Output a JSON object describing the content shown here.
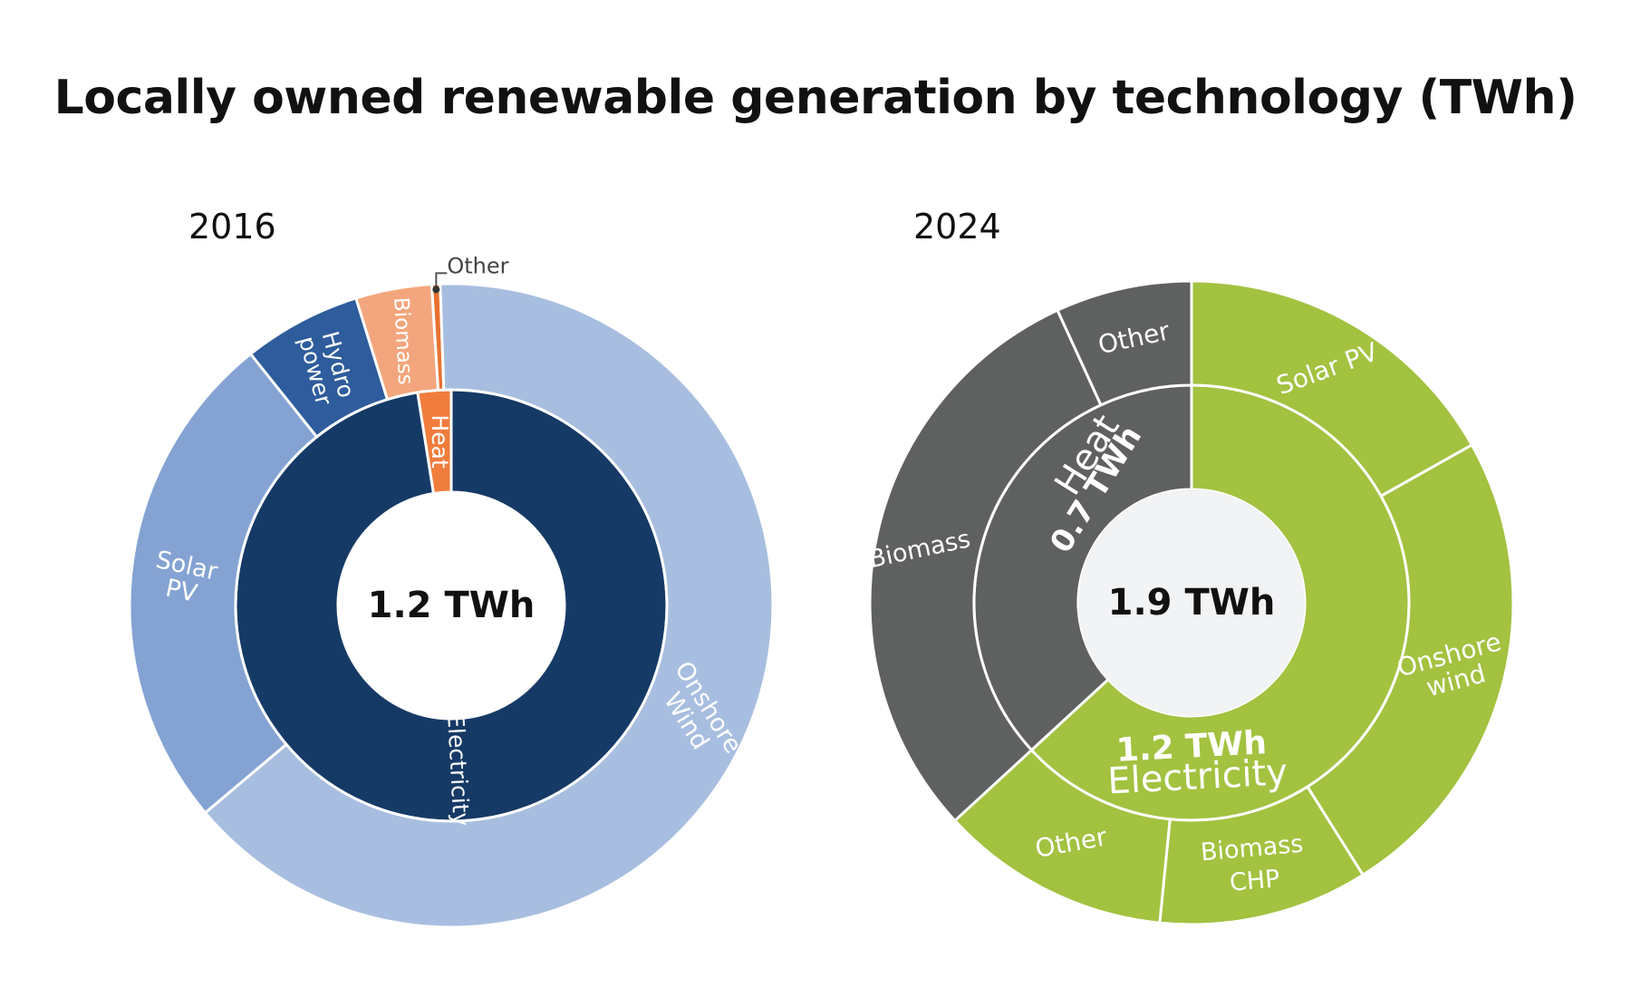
{
  "title": "Locally owned renewable generation by technology (TWh)",
  "colors": {
    "electricity_2016": "#163a66",
    "heat_2016": "#f07d3c",
    "solar_pv_2016": "#84a3d3",
    "onshore_wind_2016": "#a8bee0",
    "hydro_2016": "#2e5c9c",
    "biomass_2016": "#f3a67d",
    "other_2016": "#e8712f",
    "green_2024": "#a2c240",
    "grey_2024": "#5f6060",
    "center_2024": "#f2f3f5"
  },
  "chart_data": [
    {
      "type": "sunburst",
      "year": "2016",
      "total_label": "1.2 TWh",
      "inner": [
        {
          "name": "Heat",
          "value": 0.03
        },
        {
          "name": "Electricity",
          "value": 1.17
        }
      ],
      "outer": [
        {
          "name": "Other",
          "parent": "Heat",
          "value": 0.005
        },
        {
          "name": "Onshore Wind",
          "parent": "Electricity",
          "value": 0.76
        },
        {
          "name": "Solar PV",
          "parent": "Electricity",
          "value": 0.3
        },
        {
          "name": "Hydro power",
          "parent": "Electricity",
          "value": 0.07
        },
        {
          "name": "Biomass",
          "parent": "Electricity",
          "value": 0.045
        }
      ],
      "labels": {
        "heat": "Heat",
        "electricity": "Electricity",
        "onshore_wind": [
          "Onshore",
          "Wind"
        ],
        "solar_pv": [
          "Solar",
          "PV"
        ],
        "hydro": [
          "Hydro",
          "power"
        ],
        "biomass": "Biomass",
        "other": "Other"
      }
    },
    {
      "type": "sunburst",
      "year": "2024",
      "total_label": "1.9 TWh",
      "inner": [
        {
          "name": "Electricity",
          "value": 1.2,
          "label": "Electricity",
          "value_label": "1.2 TWh"
        },
        {
          "name": "Heat",
          "value": 0.7,
          "label": "Heat",
          "value_label": "0.7 TWh"
        }
      ],
      "outer": [
        {
          "name": "Solar PV",
          "parent": "Electricity",
          "value": 0.32
        },
        {
          "name": "Onshore wind",
          "parent": "Electricity",
          "value": 0.46
        },
        {
          "name": "Biomass CHP",
          "parent": "Electricity",
          "value": 0.2
        },
        {
          "name": "Other",
          "parent": "Electricity",
          "value": 0.22
        },
        {
          "name": "Biomass",
          "parent": "Heat",
          "value": 0.57
        },
        {
          "name": "Other",
          "parent": "Heat",
          "value": 0.13
        }
      ],
      "labels": {
        "solar_pv": "Solar PV",
        "onshore_wind": [
          "Onshore",
          "wind"
        ],
        "biomass_chp": [
          "Biomass",
          "CHP"
        ],
        "other_elec": "Other",
        "biomass_heat": "Biomass",
        "other_heat": "Other"
      }
    }
  ]
}
